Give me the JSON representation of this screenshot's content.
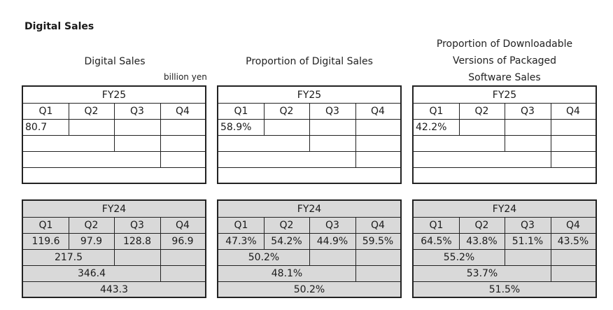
{
  "title": "Digital Sales",
  "unit": "billion yen",
  "sections": [
    {
      "heading": [
        "Digital Sales"
      ],
      "current": {
        "year": "FY25",
        "quarters": [
          "Q1",
          "Q2",
          "Q3",
          "Q4"
        ],
        "q_values": [
          "80.7",
          "",
          "",
          ""
        ],
        "h1": "",
        "q1_3": "",
        "full": ""
      },
      "previous": {
        "year": "FY24",
        "quarters": [
          "Q1",
          "Q2",
          "Q3",
          "Q4"
        ],
        "q_values": [
          "119.6",
          "97.9",
          "128.8",
          "96.9"
        ],
        "h1": "217.5",
        "q1_3": "346.4",
        "full": "443.3"
      }
    },
    {
      "heading": [
        "Proportion of Digital Sales"
      ],
      "current": {
        "year": "FY25",
        "quarters": [
          "Q1",
          "Q2",
          "Q3",
          "Q4"
        ],
        "q_values": [
          "58.9%",
          "",
          "",
          ""
        ],
        "h1": "",
        "q1_3": "",
        "full": ""
      },
      "previous": {
        "year": "FY24",
        "quarters": [
          "Q1",
          "Q2",
          "Q3",
          "Q4"
        ],
        "q_values": [
          "47.3%",
          "54.2%",
          "44.9%",
          "59.5%"
        ],
        "h1": "50.2%",
        "q1_3": "48.1%",
        "full": "50.2%"
      }
    },
    {
      "heading": [
        "Proportion of Downloadable",
        "Versions of Packaged",
        "Software Sales"
      ],
      "current": {
        "year": "FY25",
        "quarters": [
          "Q1",
          "Q2",
          "Q3",
          "Q4"
        ],
        "q_values": [
          "42.2%",
          "",
          "",
          ""
        ],
        "h1": "",
        "q1_3": "",
        "full": ""
      },
      "previous": {
        "year": "FY24",
        "quarters": [
          "Q1",
          "Q2",
          "Q3",
          "Q4"
        ],
        "q_values": [
          "64.5%",
          "43.8%",
          "51.1%",
          "43.5%"
        ],
        "h1": "55.2%",
        "q1_3": "53.7%",
        "full": "51.5%"
      }
    }
  ]
}
